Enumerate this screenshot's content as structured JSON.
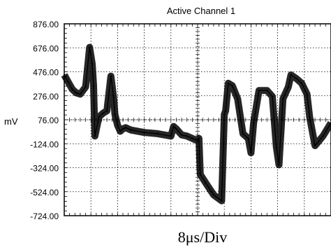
{
  "chart_data": {
    "type": "line",
    "title": "Active Channel 1",
    "ylabel": "mV",
    "xlabel": "8μs/Div",
    "ylim": [
      -724,
      876
    ],
    "y_ticks": [
      "876.00",
      "676.00",
      "476.00",
      "276.00",
      "76.00",
      "-124.00",
      "-324.00",
      "-524.00",
      "-724.00"
    ],
    "x_divisions": 10,
    "grid": true,
    "series": [
      {
        "x": [
          0,
          0.15,
          0.3,
          0.45,
          0.6,
          0.8,
          0.95,
          1.05,
          1.1,
          1.15,
          1.3,
          1.45,
          1.6,
          1.75,
          1.85,
          1.9,
          2.0,
          2.1,
          2.2,
          2.3,
          2.5,
          3.0,
          3.5,
          4.0,
          4.1,
          4.15,
          4.2,
          4.4,
          4.6,
          4.8,
          5.0,
          5.05,
          5.1,
          5.3,
          5.6,
          5.9,
          6.0,
          6.05,
          6.15,
          6.3,
          6.5,
          6.7,
          6.9,
          7.0,
          7.1,
          7.3,
          7.6,
          7.8,
          7.95,
          8.05,
          8.2,
          8.4,
          8.5,
          8.7,
          8.9,
          9.1,
          9.2,
          9.4,
          9.7,
          10.0
        ],
        "values": [
          450,
          390,
          330,
          300,
          290,
          350,
          680,
          540,
          360,
          -60,
          100,
          130,
          150,
          440,
          260,
          120,
          30,
          -20,
          0,
          10,
          -10,
          -30,
          -40,
          -60,
          20,
          10,
          0,
          -50,
          -60,
          -80,
          -100,
          -80,
          -380,
          -450,
          -550,
          -600,
          120,
          150,
          380,
          360,
          250,
          -40,
          -80,
          -200,
          50,
          320,
          320,
          270,
          -150,
          -300,
          250,
          350,
          450,
          420,
          380,
          290,
          100,
          -140,
          -60,
          50
        ]
      }
    ]
  }
}
